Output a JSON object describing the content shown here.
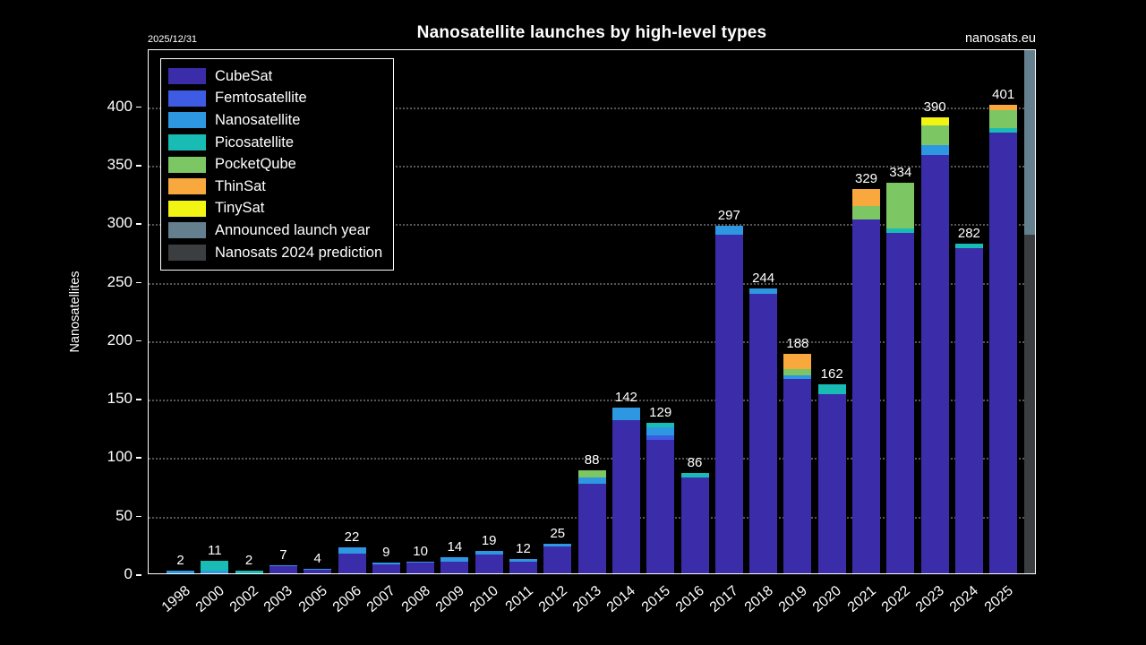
{
  "header": {
    "title": "Nanosatellite launches by high-level types",
    "date_note": "2025/12/31",
    "watermark": "nanosats.eu"
  },
  "chart_data": {
    "type": "bar",
    "stacked": true,
    "title": "Nanosatellite launches by high-level types",
    "xlabel": "",
    "ylabel": "Nanosatellites",
    "ylim": [
      0,
      449
    ],
    "yticks": [
      0,
      50,
      100,
      150,
      200,
      250,
      300,
      350,
      400
    ],
    "grid": "dotted-horizontal",
    "legend_position": "top-left",
    "background": "#000000",
    "colors": {
      "CubeSat": "#3b2caa",
      "Femtosatellite": "#3e5be4",
      "Nanosatellite": "#2e97e2",
      "Picosatellite": "#19bcb4",
      "PocketQube": "#7cc663",
      "ThinSat": "#f8a83c",
      "TinySat": "#f2f414",
      "Announced launch year": "#64808f",
      "Nanosats 2024 prediction": "#3b3e40"
    },
    "legend": [
      {
        "label": "CubeSat",
        "color": "#3b2caa"
      },
      {
        "label": "Femtosatellite",
        "color": "#3e5be4"
      },
      {
        "label": "Nanosatellite",
        "color": "#2e97e2"
      },
      {
        "label": "Picosatellite",
        "color": "#19bcb4"
      },
      {
        "label": "PocketQube",
        "color": "#7cc663"
      },
      {
        "label": "ThinSat",
        "color": "#f8a83c"
      },
      {
        "label": "TinySat",
        "color": "#f2f414"
      },
      {
        "label": "Announced launch year",
        "color": "#64808f"
      },
      {
        "label": "Nanosats 2024 prediction",
        "color": "#3b3e40"
      }
    ],
    "categories": [
      "1998",
      "2000",
      "2002",
      "2003",
      "2005",
      "2006",
      "2007",
      "2008",
      "2009",
      "2010",
      "2011",
      "2012",
      "2013",
      "2014",
      "2015",
      "2016",
      "2017",
      "2018",
      "2019",
      "2020",
      "2021",
      "2022",
      "2023",
      "2024",
      "2025"
    ],
    "totals": [
      2,
      11,
      2,
      7,
      4,
      22,
      9,
      10,
      14,
      19,
      12,
      25,
      88,
      142,
      129,
      86,
      297,
      244,
      188,
      162,
      329,
      334,
      390,
      282,
      401
    ],
    "bars": [
      {
        "year": "1998",
        "total": 2,
        "segments": [
          {
            "type": "Nanosatellite",
            "value": 2
          }
        ]
      },
      {
        "year": "2000",
        "total": 11,
        "segments": [
          {
            "type": "Nanosatellite",
            "value": 2
          },
          {
            "type": "Picosatellite",
            "value": 9
          }
        ]
      },
      {
        "year": "2002",
        "total": 2,
        "segments": [
          {
            "type": "Picosatellite",
            "value": 2
          }
        ]
      },
      {
        "year": "2003",
        "total": 7,
        "segments": [
          {
            "type": "CubeSat",
            "value": 6
          },
          {
            "type": "Nanosatellite",
            "value": 1
          }
        ]
      },
      {
        "year": "2005",
        "total": 4,
        "segments": [
          {
            "type": "CubeSat",
            "value": 3
          },
          {
            "type": "Nanosatellite",
            "value": 1
          }
        ]
      },
      {
        "year": "2006",
        "total": 22,
        "segments": [
          {
            "type": "CubeSat",
            "value": 17
          },
          {
            "type": "Nanosatellite",
            "value": 5
          }
        ]
      },
      {
        "year": "2007",
        "total": 9,
        "segments": [
          {
            "type": "CubeSat",
            "value": 8
          },
          {
            "type": "Nanosatellite",
            "value": 1
          }
        ]
      },
      {
        "year": "2008",
        "total": 10,
        "segments": [
          {
            "type": "CubeSat",
            "value": 9
          },
          {
            "type": "Nanosatellite",
            "value": 1
          }
        ]
      },
      {
        "year": "2009",
        "total": 14,
        "segments": [
          {
            "type": "CubeSat",
            "value": 10
          },
          {
            "type": "Nanosatellite",
            "value": 4
          }
        ]
      },
      {
        "year": "2010",
        "total": 19,
        "segments": [
          {
            "type": "CubeSat",
            "value": 16
          },
          {
            "type": "Nanosatellite",
            "value": 3
          }
        ]
      },
      {
        "year": "2011",
        "total": 12,
        "segments": [
          {
            "type": "CubeSat",
            "value": 10
          },
          {
            "type": "Nanosatellite",
            "value": 2
          }
        ]
      },
      {
        "year": "2012",
        "total": 25,
        "segments": [
          {
            "type": "CubeSat",
            "value": 23
          },
          {
            "type": "Nanosatellite",
            "value": 2
          }
        ]
      },
      {
        "year": "2013",
        "total": 88,
        "segments": [
          {
            "type": "CubeSat",
            "value": 77
          },
          {
            "type": "Nanosatellite",
            "value": 5
          },
          {
            "type": "PocketQube",
            "value": 6
          }
        ]
      },
      {
        "year": "2014",
        "total": 142,
        "segments": [
          {
            "type": "CubeSat",
            "value": 131
          },
          {
            "type": "Nanosatellite",
            "value": 11
          }
        ]
      },
      {
        "year": "2015",
        "total": 129,
        "segments": [
          {
            "type": "CubeSat",
            "value": 114
          },
          {
            "type": "Femtosatellite",
            "value": 4
          },
          {
            "type": "Nanosatellite",
            "value": 7
          },
          {
            "type": "Picosatellite",
            "value": 4
          }
        ]
      },
      {
        "year": "2016",
        "total": 86,
        "segments": [
          {
            "type": "CubeSat",
            "value": 82
          },
          {
            "type": "Picosatellite",
            "value": 4
          }
        ]
      },
      {
        "year": "2017",
        "total": 297,
        "segments": [
          {
            "type": "CubeSat",
            "value": 290
          },
          {
            "type": "Nanosatellite",
            "value": 7
          }
        ]
      },
      {
        "year": "2018",
        "total": 244,
        "segments": [
          {
            "type": "CubeSat",
            "value": 239
          },
          {
            "type": "Nanosatellite",
            "value": 5
          }
        ]
      },
      {
        "year": "2019",
        "total": 188,
        "segments": [
          {
            "type": "CubeSat",
            "value": 166
          },
          {
            "type": "Nanosatellite",
            "value": 3
          },
          {
            "type": "PocketQube",
            "value": 6
          },
          {
            "type": "ThinSat",
            "value": 13
          }
        ]
      },
      {
        "year": "2020",
        "total": 162,
        "segments": [
          {
            "type": "CubeSat",
            "value": 153
          },
          {
            "type": "Picosatellite",
            "value": 9
          }
        ]
      },
      {
        "year": "2021",
        "total": 329,
        "segments": [
          {
            "type": "CubeSat",
            "value": 303
          },
          {
            "type": "PocketQube",
            "value": 11
          },
          {
            "type": "ThinSat",
            "value": 15
          }
        ]
      },
      {
        "year": "2022",
        "total": 334,
        "segments": [
          {
            "type": "CubeSat",
            "value": 291
          },
          {
            "type": "Picosatellite",
            "value": 4
          },
          {
            "type": "PocketQube",
            "value": 39
          }
        ]
      },
      {
        "year": "2023",
        "total": 390,
        "segments": [
          {
            "type": "CubeSat",
            "value": 358
          },
          {
            "type": "Nanosatellite",
            "value": 8
          },
          {
            "type": "PocketQube",
            "value": 17
          },
          {
            "type": "TinySat",
            "value": 7
          }
        ]
      },
      {
        "year": "2024",
        "total": 282,
        "segments": [
          {
            "type": "CubeSat",
            "value": 278
          },
          {
            "type": "Picosatellite",
            "value": 4
          }
        ]
      },
      {
        "year": "2025",
        "total": 401,
        "segments": [
          {
            "type": "CubeSat",
            "value": 377
          },
          {
            "type": "Picosatellite",
            "value": 4
          },
          {
            "type": "PocketQube",
            "value": 15
          },
          {
            "type": "ThinSat",
            "value": 5
          }
        ]
      }
    ],
    "partial_right_bar": {
      "note": "clipped at right plot edge",
      "segments": [
        {
          "type": "Nanosats 2024 prediction",
          "value": 290
        },
        {
          "type": "Announced launch year",
          "value": 165,
          "clipped": true
        }
      ]
    }
  }
}
